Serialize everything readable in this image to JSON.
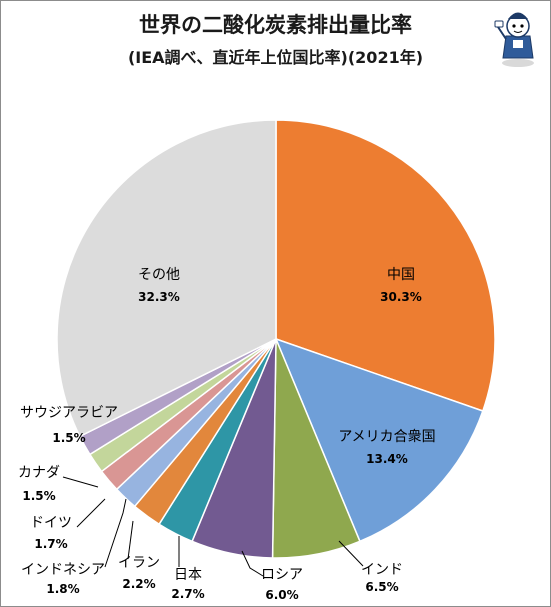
{
  "chart_data": {
    "type": "pie",
    "title": "世界の二酸化炭素排出量比率",
    "subtitle": "(IEA調べ、直近年上位国比率)(2021年)",
    "slices": [
      {
        "label": "中国",
        "value_label": "30.3%",
        "value": 30.3,
        "color": "#ED7D31"
      },
      {
        "label": "アメリカ合衆国",
        "value_label": "13.4%",
        "value": 13.4,
        "color": "#6F9FD8"
      },
      {
        "label": "インド",
        "value_label": "6.5%",
        "value": 6.5,
        "color": "#8FA84E"
      },
      {
        "label": "ロシア",
        "value_label": "6.0%",
        "value": 6.0,
        "color": "#725A91"
      },
      {
        "label": "日本",
        "value_label": "2.7%",
        "value": 2.7,
        "color": "#2E96A6"
      },
      {
        "label": "イラン",
        "value_label": "2.2%",
        "value": 2.2,
        "color": "#E2873C"
      },
      {
        "label": "インドネシア",
        "value_label": "1.8%",
        "value": 1.8,
        "color": "#97B4E0"
      },
      {
        "label": "ドイツ",
        "value_label": "1.7%",
        "value": 1.7,
        "color": "#D99694"
      },
      {
        "label": "カナダ",
        "value_label": "1.5%",
        "value": 1.5,
        "color": "#C3D69B"
      },
      {
        "label": "サウジアラビア",
        "value_label": "1.5%",
        "value": 1.5,
        "color": "#B1A0C7"
      },
      {
        "label": "その他",
        "value_label": "32.3%",
        "value": 32.3,
        "color": "#DCDCDC"
      }
    ]
  }
}
